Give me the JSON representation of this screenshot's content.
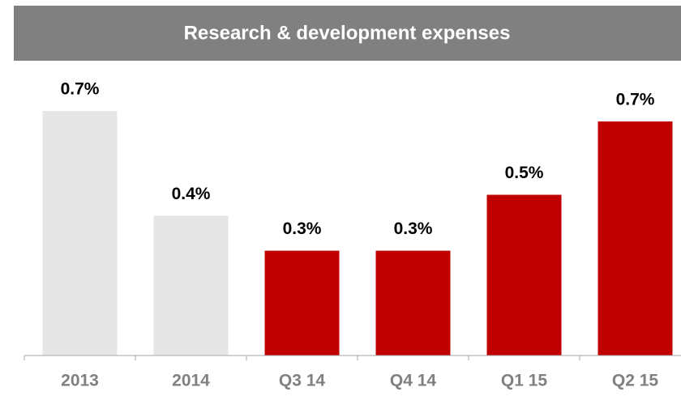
{
  "chart_data": {
    "type": "bar",
    "title": "Research & development expenses",
    "categories": [
      "2013",
      "2014",
      "Q3 14",
      "Q4 14",
      "Q1 15",
      "Q2 15"
    ],
    "values": [
      0.7,
      0.4,
      0.3,
      0.3,
      0.46,
      0.67
    ],
    "value_labels": [
      "0.7%",
      "0.4%",
      "0.3%",
      "0.3%",
      "0.5%",
      "0.7%"
    ],
    "colors": [
      "#e6e6e6",
      "#e6e6e6",
      "#c00000",
      "#c00000",
      "#c00000",
      "#c00000"
    ]
  }
}
